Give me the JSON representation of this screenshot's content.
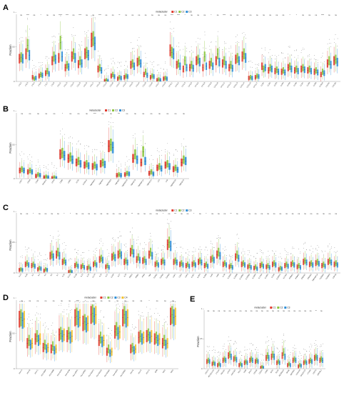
{
  "colors": {
    "C1": "#e23b2f",
    "C2": "#8cc63f",
    "C3": "#2f8fd8",
    "C4": "#f2c12e"
  },
  "chart_data": [
    {
      "type": "box",
      "panel": "A",
      "legend": {
        "title": "metacluster",
        "entries": [
          "C1",
          "C2",
          "C3"
        ]
      },
      "ylabel": "Fraction",
      "ylim": [
        0,
        1
      ],
      "significance": [
        "ns",
        "****",
        "ns",
        "*",
        "ns",
        "ns",
        "*****",
        "****",
        "ns",
        "****",
        "ns",
        "ns",
        "****",
        "ns",
        "ns",
        "**",
        "ns",
        "ns",
        "ns",
        "ns",
        "ns",
        "ns",
        "ns",
        "****",
        "****",
        "*",
        "ns",
        "ns",
        "ns",
        "*",
        "ns",
        "****",
        "ns",
        "ns",
        "ns",
        "ns",
        "ns",
        "ns",
        "ns",
        "ns",
        "ns",
        "*",
        "*",
        "ns",
        "ns",
        "ns",
        "****",
        "ns",
        "ns"
      ],
      "categories": [
        "CCL2",
        "CCL3",
        "CCL4",
        "CCL5",
        "CCL7",
        "CCL8",
        "CCL11",
        "CCL13",
        "CCL14",
        "CCL15",
        "CCL16",
        "CCL17",
        "CCL18",
        "CCL19",
        "CCL20",
        "CCL21",
        "CCL22",
        "CCL23",
        "CCL24",
        "CCL25",
        "CCL26",
        "CCL27",
        "CCL28",
        "CXCL1",
        "CXCL2",
        "CXCL3",
        "CXCL5",
        "CXCL6",
        "CXCL8",
        "CXCL9",
        "CXCL10",
        "CXCL11",
        "CXCL12",
        "CXCL13",
        "CXCL14",
        "CXCL16",
        "CXCL17",
        "CCR1",
        "CCR2",
        "CCR3",
        "CCR4",
        "CCR5",
        "CCR6",
        "CCR7",
        "CCR8",
        "CCR9",
        "CCR10",
        "CXCR1",
        "CXCR2"
      ],
      "medians": [
        [
          0.33,
          0.35,
          0.33
        ],
        [
          0.4,
          0.52,
          0.38
        ],
        [
          0.06,
          0.04,
          0.05
        ],
        [
          0.08,
          0.1,
          0.09
        ],
        [
          0.12,
          0.15,
          0.11
        ],
        [
          0.3,
          0.36,
          0.32
        ],
        [
          0.34,
          0.56,
          0.36
        ],
        [
          0.2,
          0.24,
          0.21
        ],
        [
          0.36,
          0.4,
          0.34
        ],
        [
          0.25,
          0.3,
          0.26
        ],
        [
          0.4,
          0.42,
          0.38
        ],
        [
          0.6,
          0.62,
          0.55
        ],
        [
          0.18,
          0.2,
          0.16
        ],
        [
          0.01,
          0.02,
          0.01
        ],
        [
          0.08,
          0.1,
          0.07
        ],
        [
          0.04,
          0.06,
          0.05
        ],
        [
          0.06,
          0.08,
          0.07
        ],
        [
          0.24,
          0.26,
          0.22
        ],
        [
          0.28,
          0.3,
          0.26
        ],
        [
          0.1,
          0.14,
          0.09
        ],
        [
          0.06,
          0.08,
          0.07
        ],
        [
          0.02,
          0.03,
          0.02
        ],
        [
          0.04,
          0.05,
          0.04
        ],
        [
          0.45,
          0.42,
          0.4
        ],
        [
          0.24,
          0.26,
          0.22
        ],
        [
          0.18,
          0.3,
          0.2
        ],
        [
          0.2,
          0.24,
          0.19
        ],
        [
          0.3,
          0.32,
          0.28
        ],
        [
          0.2,
          0.36,
          0.22
        ],
        [
          0.24,
          0.28,
          0.22
        ],
        [
          0.3,
          0.4,
          0.28
        ],
        [
          0.26,
          0.3,
          0.24
        ],
        [
          0.2,
          0.24,
          0.19
        ],
        [
          0.32,
          0.34,
          0.3
        ],
        [
          0.36,
          0.4,
          0.34
        ],
        [
          0.05,
          0.06,
          0.05
        ],
        [
          0.06,
          0.08,
          0.07
        ],
        [
          0.22,
          0.18,
          0.2
        ],
        [
          0.16,
          0.2,
          0.18
        ],
        [
          0.15,
          0.17,
          0.14
        ],
        [
          0.14,
          0.16,
          0.13
        ],
        [
          0.2,
          0.22,
          0.18
        ],
        [
          0.16,
          0.18,
          0.15
        ],
        [
          0.18,
          0.2,
          0.17
        ],
        [
          0.16,
          0.18,
          0.15
        ],
        [
          0.14,
          0.16,
          0.13
        ],
        [
          0.1,
          0.14,
          0.12
        ],
        [
          0.26,
          0.3,
          0.24
        ],
        [
          0.3,
          0.32,
          0.28
        ]
      ]
    },
    {
      "type": "box",
      "panel": "B",
      "legend": {
        "title": "metacluster",
        "entries": [
          "C1",
          "C2",
          "C3"
        ]
      },
      "ylabel": "Fraction",
      "ylim": [
        0,
        1
      ],
      "significance": [
        "ns",
        "ns",
        "ns",
        "ns",
        "ns",
        "*",
        "ns",
        "ns",
        "ns",
        "****",
        "ns",
        "ns",
        "***",
        "ns",
        "ns",
        "ns",
        "ns",
        "ns",
        "ns",
        "ns",
        "ns"
      ],
      "categories": [
        "CD27",
        "CD28",
        "CD40",
        "CD40LG",
        "CD70",
        "CD80",
        "CD86",
        "ICOS",
        "ICOSLG",
        "TNFRSF4",
        "TNFSF4",
        "TNFRSF9",
        "TNFSF9",
        "TNFRSF18",
        "TNFSF18",
        "TNFRSF14",
        "TNFSF14",
        "LTA",
        "LTB",
        "TNFRSF25",
        "TNFSF15"
      ],
      "medians": [
        [
          0.12,
          0.14,
          0.12
        ],
        [
          0.1,
          0.12,
          0.1
        ],
        [
          0.04,
          0.06,
          0.05
        ],
        [
          0.02,
          0.03,
          0.02
        ],
        [
          0.01,
          0.02,
          0.01
        ],
        [
          0.36,
          0.38,
          0.34
        ],
        [
          0.3,
          0.32,
          0.28
        ],
        [
          0.24,
          0.26,
          0.22
        ],
        [
          0.2,
          0.22,
          0.19
        ],
        [
          0.18,
          0.2,
          0.17
        ],
        [
          0.22,
          0.24,
          0.21
        ],
        [
          0.48,
          0.5,
          0.46
        ],
        [
          0.05,
          0.06,
          0.05
        ],
        [
          0.06,
          0.08,
          0.07
        ],
        [
          0.3,
          0.36,
          0.28
        ],
        [
          0.24,
          0.4,
          0.26
        ],
        [
          0.08,
          0.1,
          0.07
        ],
        [
          0.16,
          0.18,
          0.15
        ],
        [
          0.2,
          0.22,
          0.18
        ],
        [
          0.14,
          0.16,
          0.13
        ],
        [
          0.24,
          0.28,
          0.26
        ]
      ]
    },
    {
      "type": "box",
      "panel": "C",
      "legend": {
        "title": "metacluster",
        "entries": [
          "C1",
          "C2",
          "C3"
        ]
      },
      "ylabel": "Fraction",
      "ylim": [
        0,
        1
      ],
      "significance": [
        "ns",
        "ns",
        "*",
        "ns",
        "ns",
        "ns",
        "ns",
        "*",
        "*",
        "ns",
        "ns",
        "ns",
        "ns",
        "ns",
        "ns",
        "ns",
        "ns",
        "ns",
        "**",
        "ns",
        "ns",
        "ns",
        "ns",
        "*",
        "ns",
        "***",
        "ns",
        "ns",
        "*",
        "ns",
        "*",
        "ns",
        "ns",
        "ns",
        "**",
        "ns",
        "*",
        "ns",
        "ns",
        "ns",
        "ns",
        "ns",
        "ns",
        "ns",
        "ns",
        "ns",
        "ns",
        "ns",
        "ns",
        "ns",
        "ns",
        "ns"
      ],
      "categories": [
        "IL1A",
        "IL1B",
        "IL2",
        "IL4",
        "IL5",
        "IL6",
        "IL7",
        "IL10",
        "IL12A",
        "IL12B",
        "IL13",
        "IL15",
        "IL17A",
        "IL18",
        "IL21",
        "IL23A",
        "IL27",
        "IL33",
        "IFNA1",
        "IFNB1",
        "IFNG",
        "TNF",
        "TGFB1",
        "TGFB2",
        "TGFB3",
        "CSF1",
        "CSF2",
        "CSF3",
        "IL1R1",
        "IL2RA",
        "IL2RB",
        "IL4R",
        "IL6R",
        "IL7R",
        "IL10RA",
        "IL10RB",
        "IL12RB1",
        "IL12RB2",
        "IL15RA",
        "IL17RA",
        "IL18R1",
        "IL21R",
        "IL22RA1",
        "IL27RA",
        "IFNAR1",
        "IFNAR2",
        "IFNGR1",
        "IFNGR2",
        "TNFRSF1A",
        "TGFBR1",
        "TGFBR2",
        "CSF1R"
      ],
      "medians": [
        [
          0.05,
          0.06,
          0.05
        ],
        [
          0.14,
          0.16,
          0.13
        ],
        [
          0.12,
          0.14,
          0.11
        ],
        [
          0.06,
          0.08,
          0.07
        ],
        [
          0.04,
          0.06,
          0.05
        ],
        [
          0.28,
          0.3,
          0.26
        ],
        [
          0.3,
          0.34,
          0.28
        ],
        [
          0.18,
          0.2,
          0.17
        ],
        [
          0.02,
          0.03,
          0.02
        ],
        [
          0.12,
          0.14,
          0.11
        ],
        [
          0.1,
          0.12,
          0.09
        ],
        [
          0.08,
          0.1,
          0.07
        ],
        [
          0.14,
          0.16,
          0.13
        ],
        [
          0.22,
          0.24,
          0.21
        ],
        [
          0.1,
          0.12,
          0.09
        ],
        [
          0.26,
          0.28,
          0.25
        ],
        [
          0.3,
          0.32,
          0.29
        ],
        [
          0.18,
          0.2,
          0.17
        ],
        [
          0.34,
          0.38,
          0.32
        ],
        [
          0.22,
          0.26,
          0.21
        ],
        [
          0.2,
          0.22,
          0.18
        ],
        [
          0.3,
          0.34,
          0.28
        ],
        [
          0.14,
          0.16,
          0.13
        ],
        [
          0.18,
          0.2,
          0.17
        ],
        [
          0.46,
          0.5,
          0.44
        ],
        [
          0.18,
          0.2,
          0.17
        ],
        [
          0.14,
          0.16,
          0.13
        ],
        [
          0.12,
          0.14,
          0.11
        ],
        [
          0.14,
          0.16,
          0.13
        ],
        [
          0.18,
          0.2,
          0.17
        ],
        [
          0.12,
          0.14,
          0.11
        ],
        [
          0.22,
          0.24,
          0.21
        ],
        [
          0.3,
          0.34,
          0.28
        ],
        [
          0.14,
          0.16,
          0.13
        ],
        [
          0.1,
          0.12,
          0.09
        ],
        [
          0.26,
          0.3,
          0.24
        ],
        [
          0.14,
          0.16,
          0.13
        ],
        [
          0.1,
          0.12,
          0.09
        ],
        [
          0.08,
          0.1,
          0.07
        ],
        [
          0.12,
          0.14,
          0.11
        ],
        [
          0.1,
          0.12,
          0.09
        ],
        [
          0.14,
          0.16,
          0.13
        ],
        [
          0.06,
          0.08,
          0.07
        ],
        [
          0.12,
          0.14,
          0.11
        ],
        [
          0.14,
          0.16,
          0.13
        ],
        [
          0.1,
          0.12,
          0.09
        ],
        [
          0.18,
          0.2,
          0.17
        ],
        [
          0.14,
          0.16,
          0.13
        ],
        [
          0.16,
          0.18,
          0.15
        ],
        [
          0.12,
          0.14,
          0.11
        ],
        [
          0.18,
          0.2,
          0.17
        ],
        [
          0.14,
          0.16,
          0.13
        ]
      ]
    },
    {
      "type": "box",
      "panel": "D",
      "legend": {
        "title": "metacluster",
        "entries": [
          "C1",
          "C2",
          "C3",
          "C4"
        ]
      },
      "ylabel": "Fraction",
      "ylim": [
        0,
        1
      ],
      "significance": [
        "ns",
        "ns",
        "ns",
        "ns",
        "ns",
        "ns",
        "ns",
        "****",
        "*",
        "ns",
        "ns",
        "ns",
        "ns",
        "ns",
        "ns",
        "ns",
        "*",
        "ns",
        "ns",
        "ns"
      ],
      "categories": [
        "HLA-A",
        "HLA-B",
        "HLA-C",
        "HLA-DMA",
        "HLA-DMB",
        "HLA-DOA",
        "HLA-DOB",
        "HLA-DPA1",
        "HLA-DPB1",
        "HLA-DQA1",
        "HLA-DQA2",
        "HLA-DQB1",
        "HLA-DRA",
        "HLA-DRB1",
        "HLA-E",
        "HLA-F",
        "HLA-G",
        "B2M",
        "TAP1",
        "TAP2"
      ],
      "medians": [
        [
          0.7,
          0.72,
          0.68,
          0.7
        ],
        [
          0.36,
          0.4,
          0.34,
          0.36
        ],
        [
          0.42,
          0.46,
          0.4,
          0.42
        ],
        [
          0.3,
          0.34,
          0.28,
          0.3
        ],
        [
          0.28,
          0.32,
          0.26,
          0.28
        ],
        [
          0.48,
          0.5,
          0.46,
          0.48
        ],
        [
          0.46,
          0.5,
          0.44,
          0.46
        ],
        [
          0.72,
          0.74,
          0.7,
          0.72
        ],
        [
          0.64,
          0.66,
          0.62,
          0.64
        ],
        [
          0.76,
          0.78,
          0.74,
          0.76
        ],
        [
          0.4,
          0.44,
          0.38,
          0.4
        ],
        [
          0.24,
          0.28,
          0.22,
          0.24
        ],
        [
          0.52,
          0.56,
          0.5,
          0.52
        ],
        [
          0.72,
          0.76,
          0.7,
          0.72
        ],
        [
          0.28,
          0.3,
          0.26,
          0.28
        ],
        [
          0.44,
          0.46,
          0.42,
          0.44
        ],
        [
          0.46,
          0.48,
          0.44,
          0.46
        ],
        [
          0.42,
          0.44,
          0.4,
          0.42
        ],
        [
          0.36,
          0.4,
          0.34,
          0.36
        ],
        [
          0.74,
          0.76,
          0.72,
          0.74
        ]
      ]
    },
    {
      "type": "box",
      "panel": "E",
      "legend": {
        "title": "metacluster",
        "entries": [
          "C1",
          "C2",
          "C3"
        ]
      },
      "ylabel": "Fraction",
      "ylim": [
        0,
        1
      ],
      "significance": [
        "ns",
        "ns",
        "ns",
        "ns",
        "ns",
        "ns",
        "ns",
        "ns",
        "ns",
        "ns",
        "ns",
        "ns",
        "ns",
        "ns",
        "ns",
        "ns",
        "ns",
        "ns",
        "ns",
        "ns",
        "**",
        "ns"
      ],
      "categories": [
        "CD274",
        "PDCD1LG2",
        "CTLA4",
        "PDCD1",
        "LAG3",
        "HAVCR2",
        "TIGIT",
        "VSIR",
        "BTLA",
        "CD160",
        "CD244",
        "CD96",
        "IDO1",
        "TDO2",
        "ADORA2A",
        "NT5E",
        "ENTPD1",
        "LGALS9",
        "SIGLEC15",
        "VTCN1",
        "CD276",
        "KIR2DL1"
      ],
      "medians": [
        [
          0.12,
          0.14,
          0.12
        ],
        [
          0.08,
          0.1,
          0.08
        ],
        [
          0.06,
          0.08,
          0.06
        ],
        [
          0.14,
          0.16,
          0.14
        ],
        [
          0.22,
          0.24,
          0.2
        ],
        [
          0.16,
          0.18,
          0.15
        ],
        [
          0.06,
          0.08,
          0.06
        ],
        [
          0.1,
          0.12,
          0.1
        ],
        [
          0.14,
          0.16,
          0.14
        ],
        [
          0.12,
          0.14,
          0.12
        ],
        [
          0.02,
          0.03,
          0.02
        ],
        [
          0.18,
          0.22,
          0.18
        ],
        [
          0.2,
          0.24,
          0.2
        ],
        [
          0.1,
          0.12,
          0.1
        ],
        [
          0.22,
          0.28,
          0.2
        ],
        [
          0.06,
          0.08,
          0.06
        ],
        [
          0.14,
          0.16,
          0.14
        ],
        [
          0.04,
          0.06,
          0.05
        ],
        [
          0.1,
          0.12,
          0.1
        ],
        [
          0.12,
          0.14,
          0.12
        ],
        [
          0.18,
          0.2,
          0.18
        ],
        [
          0.14,
          0.16,
          0.14
        ]
      ]
    }
  ]
}
